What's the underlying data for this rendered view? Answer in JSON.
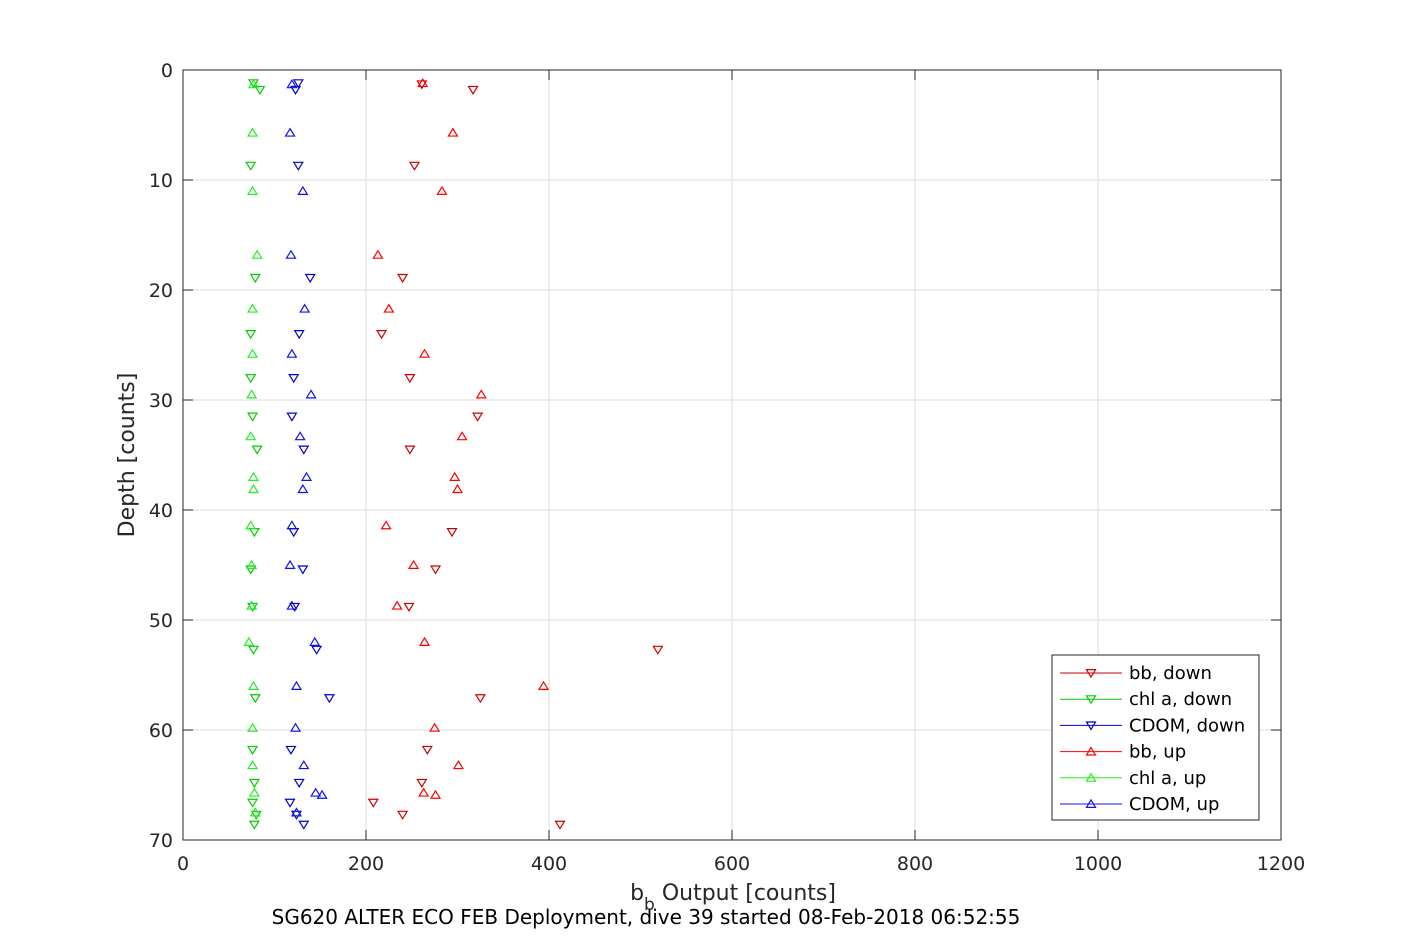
{
  "chart_data": {
    "type": "scatter",
    "xlabel_main": "b",
    "xlabel_sub": "b",
    "xlabel_rest": " Output [counts]",
    "ylabel": "Depth [counts]",
    "caption": "SG620 ALTER ECO FEB Deployment, dive 39 started 08-Feb-2018 06:52:55",
    "xlim": [
      0,
      1200
    ],
    "ylim": [
      0,
      70
    ],
    "y_reversed": true,
    "grid": true,
    "legend_position": "bottom-right",
    "x_ticks": [
      0,
      200,
      400,
      600,
      800,
      1000,
      1200
    ],
    "y_ticks": [
      0,
      10,
      20,
      30,
      40,
      50,
      60,
      70
    ],
    "series": [
      {
        "name": "bb, down",
        "color": "#cc0000",
        "marker": "triangle-down",
        "points": [
          [
            261,
            1.3
          ],
          [
            317,
            1.8
          ],
          [
            253,
            8.7
          ],
          [
            240,
            18.9
          ],
          [
            217,
            24.0
          ],
          [
            248,
            28.0
          ],
          [
            322,
            31.5
          ],
          [
            248,
            34.5
          ],
          [
            294,
            42.0
          ],
          [
            276,
            45.4
          ],
          [
            247,
            48.8
          ],
          [
            519,
            52.7
          ],
          [
            325,
            57.1
          ],
          [
            267,
            61.8
          ],
          [
            261,
            64.8
          ],
          [
            208,
            66.6
          ],
          [
            240,
            67.7
          ],
          [
            412,
            68.6
          ]
        ]
      },
      {
        "name": "chl a, down",
        "color": "#00cc00",
        "marker": "triangle-down",
        "points": [
          [
            77,
            1.2
          ],
          [
            84,
            1.8
          ],
          [
            74,
            8.7
          ],
          [
            79,
            18.9
          ],
          [
            74,
            24.0
          ],
          [
            74,
            28.0
          ],
          [
            76,
            31.5
          ],
          [
            81,
            34.5
          ],
          [
            78,
            42.0
          ],
          [
            74,
            45.4
          ],
          [
            76,
            48.8
          ],
          [
            77,
            52.7
          ],
          [
            79,
            57.1
          ],
          [
            76,
            61.8
          ],
          [
            78,
            64.8
          ],
          [
            76,
            66.6
          ],
          [
            80,
            67.7
          ],
          [
            78,
            68.6
          ]
        ]
      },
      {
        "name": "CDOM, down",
        "color": "#0000cc",
        "marker": "triangle-down",
        "points": [
          [
            126,
            1.2
          ],
          [
            123,
            1.8
          ],
          [
            126,
            8.7
          ],
          [
            139,
            18.9
          ],
          [
            127,
            24.0
          ],
          [
            121,
            28.0
          ],
          [
            119,
            31.5
          ],
          [
            132,
            34.5
          ],
          [
            121,
            42.0
          ],
          [
            131,
            45.4
          ],
          [
            122,
            48.8
          ],
          [
            146,
            52.7
          ],
          [
            160,
            57.1
          ],
          [
            118,
            61.8
          ],
          [
            127,
            64.8
          ],
          [
            117,
            66.6
          ],
          [
            124,
            67.7
          ],
          [
            132,
            68.6
          ]
        ]
      },
      {
        "name": "bb, up",
        "color": "#ff0000",
        "marker": "triangle-up",
        "points": [
          [
            262,
            1.2
          ],
          [
            295,
            5.7
          ],
          [
            283,
            11.0
          ],
          [
            213,
            16.8
          ],
          [
            225,
            21.7
          ],
          [
            264,
            25.8
          ],
          [
            326,
            29.5
          ],
          [
            305,
            33.3
          ],
          [
            297,
            37.0
          ],
          [
            300,
            38.1
          ],
          [
            222,
            41.4
          ],
          [
            252,
            45.0
          ],
          [
            234,
            48.7
          ],
          [
            264,
            52.0
          ],
          [
            394,
            56.0
          ],
          [
            275,
            59.8
          ],
          [
            301,
            63.2
          ],
          [
            263,
            65.7
          ],
          [
            276,
            65.9
          ]
        ]
      },
      {
        "name": "chl a, up",
        "color": "#22ee22",
        "marker": "triangle-up",
        "points": [
          [
            77,
            1.3
          ],
          [
            76,
            5.7
          ],
          [
            76,
            11.0
          ],
          [
            81,
            16.8
          ],
          [
            76,
            21.7
          ],
          [
            76,
            25.8
          ],
          [
            75,
            29.5
          ],
          [
            74,
            33.3
          ],
          [
            77,
            37.0
          ],
          [
            77,
            38.1
          ],
          [
            74,
            41.4
          ],
          [
            75,
            45.0
          ],
          [
            75,
            48.7
          ],
          [
            72,
            52.0
          ],
          [
            77,
            56.0
          ],
          [
            76,
            59.8
          ],
          [
            76,
            63.2
          ],
          [
            78,
            65.7
          ],
          [
            79,
            67.5
          ]
        ]
      },
      {
        "name": "CDOM, up",
        "color": "#1111ee",
        "marker": "triangle-up",
        "points": [
          [
            119,
            1.3
          ],
          [
            117,
            5.7
          ],
          [
            131,
            11.0
          ],
          [
            118,
            16.8
          ],
          [
            133,
            21.7
          ],
          [
            119,
            25.8
          ],
          [
            140,
            29.5
          ],
          [
            128,
            33.3
          ],
          [
            135,
            37.0
          ],
          [
            131,
            38.1
          ],
          [
            119,
            41.4
          ],
          [
            117,
            45.0
          ],
          [
            119,
            48.7
          ],
          [
            144,
            52.0
          ],
          [
            124,
            56.0
          ],
          [
            123,
            59.8
          ],
          [
            132,
            63.2
          ],
          [
            145,
            65.7
          ],
          [
            152,
            65.9
          ],
          [
            124,
            67.5
          ]
        ]
      }
    ]
  }
}
